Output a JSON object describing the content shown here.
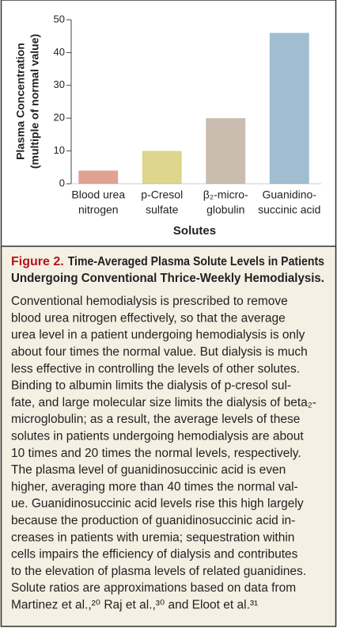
{
  "chart_data": {
    "type": "bar",
    "ylabel": [
      "Plasma Concentration",
      "(multiple of normal value)"
    ],
    "xlabel": "Solutes",
    "categories": [
      [
        "Blood urea",
        "nitrogen"
      ],
      [
        "p-Cresol",
        "sulfate"
      ],
      [
        "β₂-micro-",
        "globulin"
      ],
      [
        "Guanidino-",
        "succinic acid"
      ]
    ],
    "values": [
      4,
      10,
      20,
      46
    ],
    "colors": [
      "#e1a292",
      "#ddd68c",
      "#cabcaf",
      "#a0bed0"
    ],
    "ylim": [
      0,
      50
    ],
    "yticks": [
      0,
      10,
      20,
      30,
      40,
      50
    ]
  },
  "caption": {
    "label": "Figure 2.",
    "title": [
      "Time-Averaged Plasma Solute Levels in Patients",
      "Undergoing Conventional Thrice-Weekly Hemodialysis."
    ],
    "body": [
      "Conventional hemodialysis is prescribed to remove",
      "blood urea nitrogen effectively, so that the average",
      "urea level in a patient undergoing hemodialysis is only",
      "about four times the normal value. But dialysis is much",
      "less effective in controlling the levels of other solutes.",
      "Binding to albumin limits the dialysis of p-cresol sul-",
      "fate, and large molecular size limits the dialysis of beta₂-",
      "microglobulin; as a result, the average levels of these",
      "solutes in patients undergoing hemodialysis are about",
      "10 times and 20 times the normal levels, respectively.",
      "The plasma level of guanidinosuccinic acid is even",
      "higher, averaging more than 40 times the normal val-",
      "ue. Guanidinosuccinic acid levels rise this high largely",
      "because the production of guanidinosuccinic acid in-",
      "creases in patients with uremia; sequestration within",
      "cells impairs the efficiency of dialysis and contributes",
      "to the elevation of plasma levels of related guanidines.",
      "Solute ratios are approximations based on data from",
      "Martinez et al.,²⁰ Raj et al.,³⁰ and Eloot et al.³¹"
    ]
  }
}
